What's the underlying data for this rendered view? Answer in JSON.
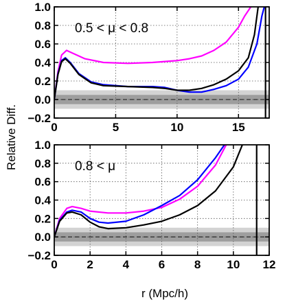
{
  "chart_data": [
    {
      "type": "line",
      "annotation": "0.5 < μ < 0.8",
      "xlim": [
        0,
        17.5
      ],
      "ylim": [
        -0.2,
        1.0
      ],
      "xticks": [
        "0",
        "5",
        "10",
        "15"
      ],
      "xtick_values": [
        0,
        5,
        10,
        15
      ],
      "yticks": [
        "−0.2",
        "0.0",
        "0.2",
        "0.4",
        "0.6",
        "0.8",
        "1.0"
      ],
      "ytick_values": [
        -0.2,
        0.0,
        0.2,
        0.4,
        0.6,
        0.8,
        1.0
      ],
      "grid": true,
      "band": {
        "inner": [
          -0.05,
          0.05
        ],
        "outer": [
          -0.1,
          0.1
        ]
      },
      "reference_line": 0.0,
      "vline": 17.2,
      "series": [
        {
          "color": "#ff00ff",
          "points": [
            [
              0,
              0
            ],
            [
              0.3,
              0.3
            ],
            [
              0.6,
              0.48
            ],
            [
              1.0,
              0.53
            ],
            [
              1.5,
              0.5
            ],
            [
              2.5,
              0.44
            ],
            [
              4,
              0.4
            ],
            [
              6,
              0.39
            ],
            [
              8,
              0.4
            ],
            [
              10,
              0.42
            ],
            [
              11,
              0.44
            ],
            [
              12,
              0.47
            ],
            [
              13,
              0.53
            ],
            [
              14,
              0.62
            ],
            [
              15,
              0.78
            ],
            [
              15.5,
              0.9
            ],
            [
              16,
              1.0
            ]
          ]
        },
        {
          "color": "#0000ff",
          "points": [
            [
              0,
              0
            ],
            [
              0.3,
              0.28
            ],
            [
              0.6,
              0.42
            ],
            [
              0.9,
              0.45
            ],
            [
              1.3,
              0.4
            ],
            [
              2,
              0.28
            ],
            [
              3,
              0.19
            ],
            [
              4,
              0.16
            ],
            [
              6,
              0.14
            ],
            [
              8,
              0.14
            ],
            [
              9,
              0.13
            ],
            [
              10,
              0.1
            ],
            [
              11,
              0.08
            ],
            [
              12,
              0.08
            ],
            [
              13,
              0.11
            ],
            [
              14,
              0.15
            ],
            [
              15,
              0.22
            ],
            [
              15.8,
              0.35
            ],
            [
              16.5,
              0.6
            ],
            [
              16.9,
              0.9
            ],
            [
              17.1,
              1.0
            ]
          ]
        },
        {
          "color": "#000000",
          "points": [
            [
              0,
              0
            ],
            [
              0.3,
              0.27
            ],
            [
              0.6,
              0.41
            ],
            [
              0.9,
              0.44
            ],
            [
              1.3,
              0.39
            ],
            [
              2,
              0.27
            ],
            [
              3,
              0.18
            ],
            [
              4,
              0.15
            ],
            [
              6,
              0.14
            ],
            [
              8,
              0.13
            ],
            [
              9,
              0.12
            ],
            [
              10,
              0.1
            ],
            [
              11,
              0.1
            ],
            [
              12,
              0.12
            ],
            [
              13,
              0.16
            ],
            [
              14,
              0.22
            ],
            [
              15,
              0.31
            ],
            [
              15.8,
              0.45
            ],
            [
              16.3,
              0.7
            ],
            [
              16.6,
              1.0
            ]
          ]
        }
      ]
    },
    {
      "type": "line",
      "annotation": "0.8 < μ",
      "xlim": [
        0,
        12
      ],
      "ylim": [
        -0.2,
        1.0
      ],
      "xticks": [
        "0",
        "2",
        "4",
        "6",
        "8",
        "10",
        "12"
      ],
      "xtick_values": [
        0,
        2,
        4,
        6,
        8,
        10,
        12
      ],
      "yticks": [
        "−0.2",
        "0.0",
        "0.2",
        "0.4",
        "0.6",
        "0.8",
        "1.0"
      ],
      "ytick_values": [
        -0.2,
        0.0,
        0.2,
        0.4,
        0.6,
        0.8,
        1.0
      ],
      "grid": true,
      "band": {
        "inner": [
          -0.05,
          0.05
        ],
        "outer": [
          -0.1,
          0.1
        ]
      },
      "reference_line": 0.0,
      "vline": 11.3,
      "series": [
        {
          "color": "#ff00ff",
          "points": [
            [
              0,
              0
            ],
            [
              0.3,
              0.2
            ],
            [
              0.7,
              0.31
            ],
            [
              1.0,
              0.33
            ],
            [
              1.5,
              0.31
            ],
            [
              2,
              0.28
            ],
            [
              3,
              0.26
            ],
            [
              4,
              0.26
            ],
            [
              5,
              0.28
            ],
            [
              6,
              0.32
            ],
            [
              7,
              0.41
            ],
            [
              8,
              0.55
            ],
            [
              9,
              0.78
            ],
            [
              9.6,
              1.0
            ]
          ]
        },
        {
          "color": "#0000ff",
          "points": [
            [
              0,
              0
            ],
            [
              0.3,
              0.18
            ],
            [
              0.7,
              0.27
            ],
            [
              1.0,
              0.29
            ],
            [
              1.5,
              0.27
            ],
            [
              2,
              0.2
            ],
            [
              2.5,
              0.16
            ],
            [
              3,
              0.15
            ],
            [
              4,
              0.17
            ],
            [
              5,
              0.24
            ],
            [
              6,
              0.34
            ],
            [
              7,
              0.45
            ],
            [
              8,
              0.62
            ],
            [
              9,
              0.86
            ],
            [
              9.5,
              1.0
            ]
          ]
        },
        {
          "color": "#000000",
          "points": [
            [
              0,
              0
            ],
            [
              0.3,
              0.17
            ],
            [
              0.7,
              0.26
            ],
            [
              1.0,
              0.27
            ],
            [
              1.5,
              0.24
            ],
            [
              2,
              0.16
            ],
            [
              2.5,
              0.11
            ],
            [
              3,
              0.09
            ],
            [
              4,
              0.1
            ],
            [
              5,
              0.13
            ],
            [
              6,
              0.17
            ],
            [
              7,
              0.24
            ],
            [
              8,
              0.34
            ],
            [
              9,
              0.5
            ],
            [
              10,
              0.76
            ],
            [
              10.5,
              1.0
            ]
          ]
        }
      ]
    }
  ],
  "ylabel": "Relative Diff.",
  "xlabel": "r (Mpc/h)"
}
